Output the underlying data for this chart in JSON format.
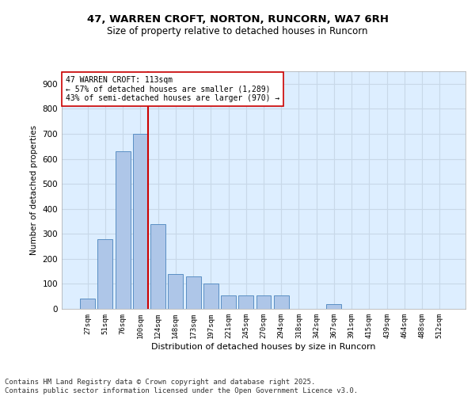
{
  "title_line1": "47, WARREN CROFT, NORTON, RUNCORN, WA7 6RH",
  "title_line2": "Size of property relative to detached houses in Runcorn",
  "xlabel": "Distribution of detached houses by size in Runcorn",
  "ylabel": "Number of detached properties",
  "bar_labels": [
    "27sqm",
    "51sqm",
    "76sqm",
    "100sqm",
    "124sqm",
    "148sqm",
    "173sqm",
    "197sqm",
    "221sqm",
    "245sqm",
    "270sqm",
    "294sqm",
    "318sqm",
    "342sqm",
    "367sqm",
    "391sqm",
    "415sqm",
    "439sqm",
    "464sqm",
    "488sqm",
    "512sqm"
  ],
  "bar_values": [
    40,
    280,
    630,
    700,
    340,
    140,
    130,
    100,
    55,
    55,
    55,
    55,
    0,
    0,
    20,
    0,
    0,
    0,
    0,
    0,
    0
  ],
  "bar_color": "#aec6e8",
  "bar_edge_color": "#5a8fc4",
  "vline_color": "#cc0000",
  "annotation_text": "47 WARREN CROFT: 113sqm\n← 57% of detached houses are smaller (1,289)\n43% of semi-detached houses are larger (970) →",
  "annotation_box_color": "#ffffff",
  "annotation_box_edge_color": "#cc0000",
  "annotation_fontsize": 7,
  "ylim": [
    0,
    950
  ],
  "yticks": [
    0,
    100,
    200,
    300,
    400,
    500,
    600,
    700,
    800,
    900
  ],
  "grid_color": "#c8d8e8",
  "bg_color": "#ddeeff",
  "footer_line1": "Contains HM Land Registry data © Crown copyright and database right 2025.",
  "footer_line2": "Contains public sector information licensed under the Open Government Licence v3.0.",
  "footer_fontsize": 6.5
}
